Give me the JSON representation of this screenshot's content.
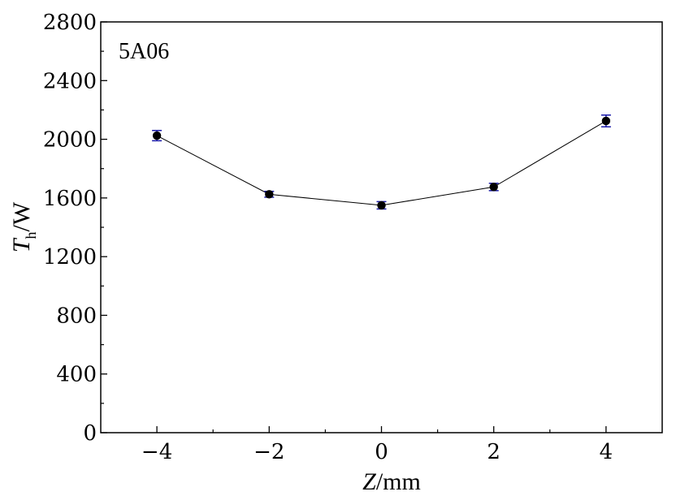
{
  "chart_data": {
    "type": "line",
    "annotation": "5A06",
    "xlabel": {
      "var": "Z",
      "unit": "/mm"
    },
    "ylabel": {
      "var": "T",
      "sub": "h",
      "unit": "/W"
    },
    "xlim": [
      -5,
      5
    ],
    "ylim": [
      0,
      2800
    ],
    "xticks": [
      -4,
      -2,
      0,
      2,
      4
    ],
    "xtick_labels": [
      "−4",
      "−2",
      "0",
      "2",
      "4"
    ],
    "yticks": [
      0,
      400,
      800,
      1200,
      1600,
      2000,
      2400,
      2800
    ],
    "ytick_labels": [
      "0",
      "400",
      "800",
      "1200",
      "1600",
      "2000",
      "2400",
      "2800"
    ],
    "grid": false,
    "series": [
      {
        "x": [
          -4,
          -2,
          0,
          2,
          4
        ],
        "y": [
          2025,
          1625,
          1550,
          1675,
          2125
        ],
        "error": [
          35,
          20,
          25,
          25,
          40
        ],
        "marker_color": "#000000",
        "errorbar_color": "#1a1aa8",
        "line_color": "#000000"
      }
    ]
  }
}
